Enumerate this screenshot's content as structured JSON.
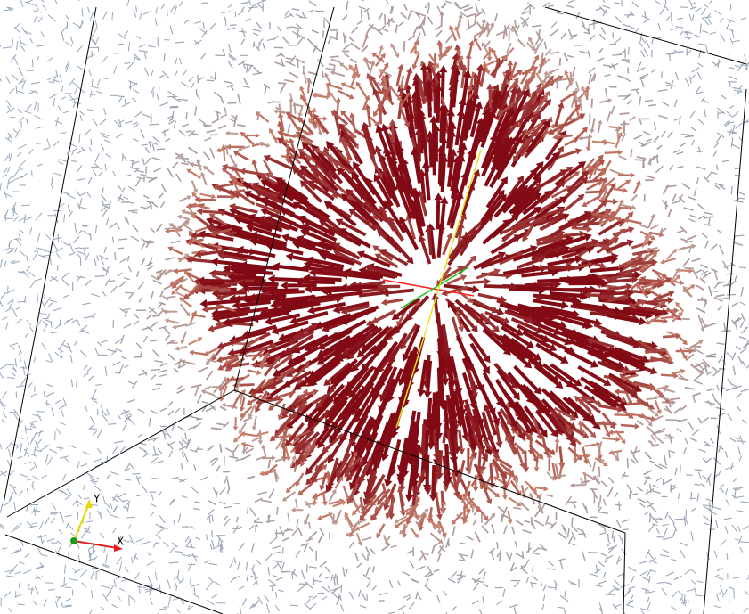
{
  "axes_triad": {
    "labels": [
      "X",
      "Y"
    ]
  }
}
